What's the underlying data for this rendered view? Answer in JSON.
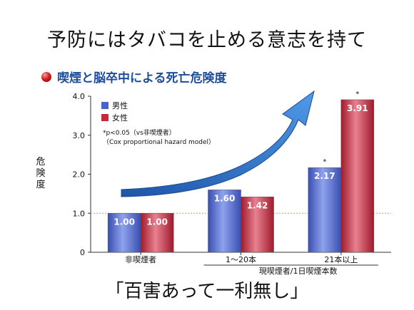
{
  "slide": {
    "title": "予防にはタバコを止める意志を持て",
    "subtitle": "喫煙と脳卒中による死亡危険度",
    "slogan": "「百害あって一利無し」",
    "ylabel_chars": [
      "危",
      "険",
      "度"
    ],
    "note_line1": "*p<0.05（vs非喫煙者）",
    "note_line2": "（Cox proportional hazard model）"
  },
  "chart_data": {
    "type": "bar",
    "ylabel": "危険度",
    "xlabel": "現喫煙者/1日喫煙本数",
    "categories": [
      "非喫煙者",
      "1～20本",
      "21本以上"
    ],
    "series": [
      {
        "name": "男性",
        "color": "#4a63c8",
        "values": [
          1.0,
          1.6,
          2.17
        ]
      },
      {
        "name": "女性",
        "color": "#c42a3c",
        "values": [
          1.0,
          1.42,
          3.91
        ]
      }
    ],
    "value_labels": [
      [
        "1.00",
        "1.60",
        "2.17"
      ],
      [
        "1.00",
        "1.42",
        "3.91"
      ]
    ],
    "significance": [
      [
        false,
        false,
        true
      ],
      [
        false,
        false,
        true
      ]
    ],
    "ylim": [
      0,
      4.0
    ],
    "yticks": [
      "0",
      "1.0",
      "2.0",
      "3.0",
      "4.0"
    ],
    "reference_line": 1.0,
    "arrow_color": "#2a6fc9"
  }
}
